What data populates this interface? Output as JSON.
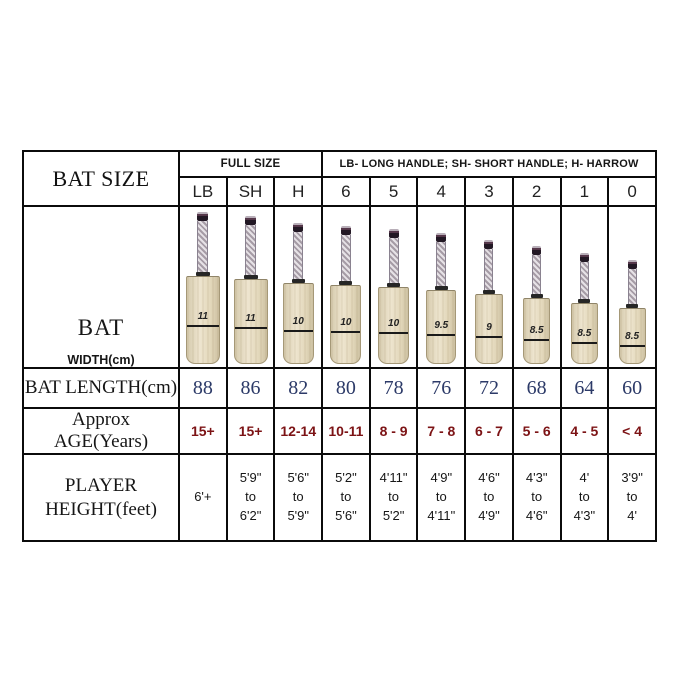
{
  "table": {
    "corner_label": "BAT SIZE",
    "group_headers": {
      "full_size": "FULL SIZE",
      "legend": "LB- LONG HANDLE; SH- SHORT HANDLE; H- HARROW"
    },
    "row_labels": {
      "bat": "BAT",
      "bat_width": "WIDTH(cm)",
      "length": "BAT LENGTH(cm)",
      "age": "Approx AGE(Years)",
      "height_line1": "PLAYER",
      "height_line2": "HEIGHT(feet)"
    },
    "columns": [
      {
        "size": "LB",
        "width_cm": "11",
        "length_cm": "88",
        "age": "15+",
        "height": [
          "6'+"
        ]
      },
      {
        "size": "SH",
        "width_cm": "11",
        "length_cm": "86",
        "age": "15+",
        "height": [
          "5'9\"",
          "to",
          "6'2\""
        ]
      },
      {
        "size": "H",
        "width_cm": "10",
        "length_cm": "82",
        "age": "12-14",
        "height": [
          "5'6\"",
          "to",
          "5'9\""
        ]
      },
      {
        "size": "6",
        "width_cm": "10",
        "length_cm": "80",
        "age": "10-11",
        "height": [
          "5'2\"",
          "to",
          "5'6\""
        ]
      },
      {
        "size": "5",
        "width_cm": "10",
        "length_cm": "78",
        "age": "8 - 9",
        "height": [
          "4'11\"",
          "to",
          "5'2\""
        ]
      },
      {
        "size": "4",
        "width_cm": "9.5",
        "length_cm": "76",
        "age": "7 - 8",
        "height": [
          "4'9\"",
          "to",
          "4'11\""
        ]
      },
      {
        "size": "3",
        "width_cm": "9",
        "length_cm": "72",
        "age": "6 - 7",
        "height": [
          "4'6\"",
          "to",
          "4'9\""
        ]
      },
      {
        "size": "2",
        "width_cm": "8.5",
        "length_cm": "68",
        "age": "5 - 6",
        "height": [
          "4'3\"",
          "to",
          "4'6\""
        ]
      },
      {
        "size": "1",
        "width_cm": "8.5",
        "length_cm": "64",
        "age": "4 - 5",
        "height": [
          "4'",
          "to",
          "4'3\""
        ]
      },
      {
        "size": "0",
        "width_cm": "8.5",
        "length_cm": "60",
        "age": "< 4",
        "height": [
          "3'9\"",
          "to",
          "4'"
        ]
      }
    ],
    "colors": {
      "border": "#0b0b0b",
      "length_value": "#2c3a68",
      "age_value": "#7c1315",
      "blade": "#e6dcc3",
      "handle_cap": "#2e2030"
    }
  },
  "chart_data": {
    "type": "table",
    "title": "BAT SIZE",
    "column_groups": [
      "FULL SIZE",
      "LB- LONG HANDLE; SH- SHORT HANDLE; H- HARROW"
    ],
    "columns": [
      "LB",
      "SH",
      "H",
      "6",
      "5",
      "4",
      "3",
      "2",
      "1",
      "0"
    ],
    "rows": [
      {
        "label": "BAT WIDTH(cm)",
        "values": [
          "11",
          "11",
          "10",
          "10",
          "10",
          "9.5",
          "9",
          "8.5",
          "8.5",
          "8.5"
        ]
      },
      {
        "label": "BAT LENGTH(cm)",
        "values": [
          "88",
          "86",
          "82",
          "80",
          "78",
          "76",
          "72",
          "68",
          "64",
          "60"
        ]
      },
      {
        "label": "Approx AGE(Years)",
        "values": [
          "15+",
          "15+",
          "12-14",
          "10-11",
          "8 - 9",
          "7 - 8",
          "6 - 7",
          "5 - 6",
          "4 - 5",
          "< 4"
        ]
      },
      {
        "label": "PLAYER HEIGHT(feet)",
        "values": [
          "6'+",
          "5'9\" to 6'2\"",
          "5'6\" to 5'9\"",
          "5'2\" to 5'6\"",
          "4'11\" to 5'2\"",
          "4'9\" to 4'11\"",
          "4'6\" to 4'9\"",
          "4'3\" to 4'6\"",
          "4' to 4'3\"",
          "3'9\" to 4'"
        ]
      }
    ]
  }
}
